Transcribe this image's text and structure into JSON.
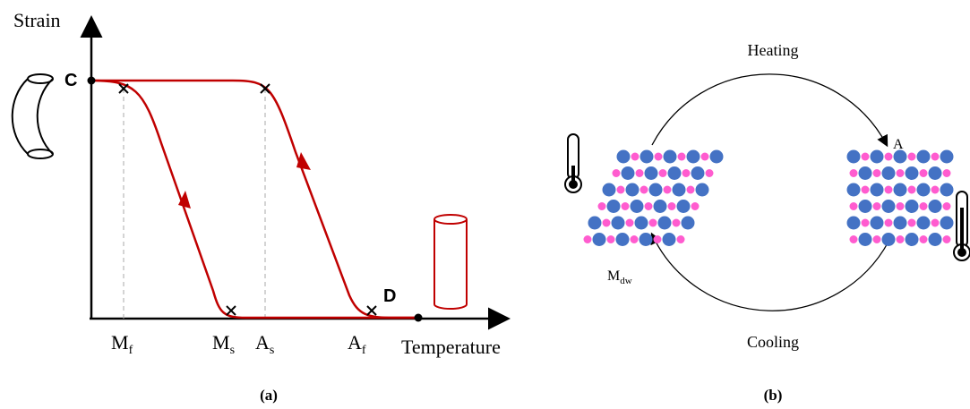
{
  "panel_a": {
    "y_axis_label": "Strain",
    "x_axis_label": "Temperature",
    "point_c": "C",
    "point_d": "D",
    "temperatures": [
      {
        "main": "M",
        "sub": "f"
      },
      {
        "main": "M",
        "sub": "s"
      },
      {
        "main": "A",
        "sub": "s"
      },
      {
        "main": "A",
        "sub": "f"
      }
    ],
    "caption": "(a)"
  },
  "panel_b": {
    "heating": "Heating",
    "cooling": "Cooling",
    "austenite": "A",
    "martensite": {
      "main": "M",
      "sub": "dw"
    },
    "caption": "(b)"
  }
}
